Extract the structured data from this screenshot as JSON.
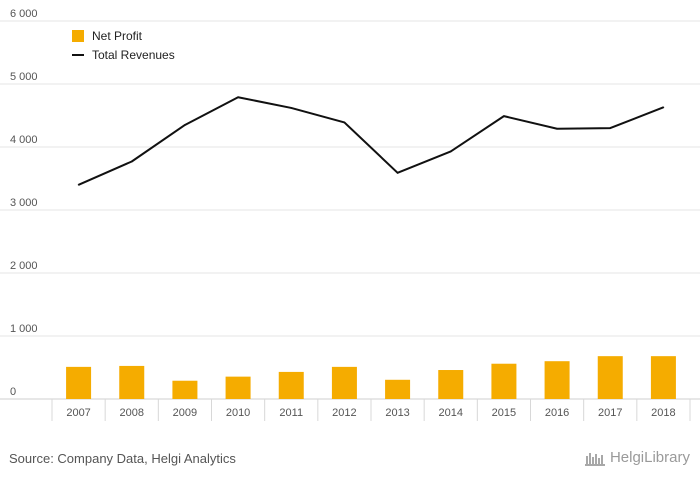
{
  "chart_data": {
    "type": "bar+line",
    "categories": [
      "2007",
      "2008",
      "2009",
      "2010",
      "2011",
      "2012",
      "2013",
      "2014",
      "2015",
      "2016",
      "2017",
      "2018"
    ],
    "series": [
      {
        "name": "Net Profit",
        "kind": "bar",
        "color": "#f5ac00",
        "values": [
          510,
          525,
          290,
          355,
          430,
          510,
          305,
          460,
          560,
          600,
          680,
          680
        ]
      },
      {
        "name": "Total Revenues",
        "kind": "line",
        "color": "#111111",
        "values": [
          3400,
          3770,
          4350,
          4790,
          4620,
          4390,
          3590,
          3930,
          4490,
          4290,
          4300,
          4630
        ]
      }
    ],
    "ylim": [
      0,
      6000
    ],
    "yticks": [
      0,
      1000,
      2000,
      3000,
      4000,
      5000,
      6000
    ],
    "ytick_labels": [
      "0",
      "1 000",
      "2 000",
      "3 000",
      "4 000",
      "5 000",
      "6 000"
    ],
    "grid": true,
    "legend": "top-left",
    "title": "",
    "xlabel": "",
    "ylabel": ""
  },
  "footer": {
    "source": "Source: Company Data, Helgi Analytics",
    "brand": "HelgiLibrary"
  }
}
